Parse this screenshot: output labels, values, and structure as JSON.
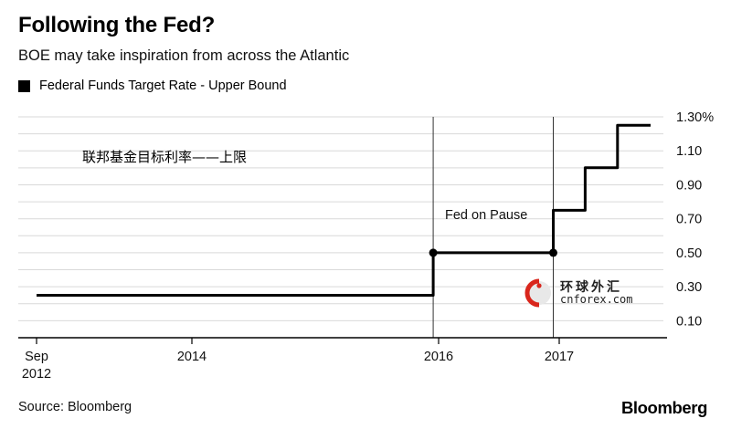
{
  "header": {
    "title": "Following the Fed?",
    "subtitle": "BOE may take inspiration from across the Atlantic",
    "legend_label": "Federal Funds Target Rate - Upper Bound"
  },
  "footer": {
    "source": "Source: Bloomberg",
    "brand": "Bloomberg"
  },
  "watermark": {
    "text_cn": "环球外汇",
    "text_en": "cnforex.com"
  },
  "chart_data": {
    "type": "line",
    "title": "Following the Fed?",
    "subtitle": "BOE may take inspiration from across the Atlantic",
    "legend": [
      "Federal Funds Target Rate - Upper Bound"
    ],
    "series": [
      {
        "name": "Federal Funds Target Rate - Upper Bound",
        "color": "#000000",
        "step": true,
        "points": [
          {
            "x": "2012-09-01",
            "y": 0.25
          },
          {
            "x": "2015-12-16",
            "y": 0.25
          },
          {
            "x": "2015-12-16",
            "y": 0.5
          },
          {
            "x": "2016-12-14",
            "y": 0.5
          },
          {
            "x": "2016-12-14",
            "y": 0.75
          },
          {
            "x": "2017-03-15",
            "y": 0.75
          },
          {
            "x": "2017-03-15",
            "y": 1.0
          },
          {
            "x": "2017-06-14",
            "y": 1.0
          },
          {
            "x": "2017-06-14",
            "y": 1.25
          },
          {
            "x": "2017-09-15",
            "y": 1.25
          }
        ],
        "markers": [
          {
            "x": "2015-12-16",
            "y": 0.5
          },
          {
            "x": "2016-12-14",
            "y": 0.5
          }
        ]
      }
    ],
    "x_ticks": [
      {
        "x": "2012-09-01",
        "label": "Sep",
        "sublabel": "2012"
      },
      {
        "x": "2014-01-01",
        "label": "2014"
      },
      {
        "x": "2016-01-01",
        "label": "2016"
      },
      {
        "x": "2017-01-01",
        "label": "2017"
      }
    ],
    "xlim": [
      "2012-09-01",
      "2017-09-15"
    ],
    "y_ticks": [
      "0.10",
      "0.30",
      "0.50",
      "0.70",
      "0.90",
      "1.10",
      "1.30%"
    ],
    "ylim": [
      0.0,
      1.3
    ],
    "y_axis_side": "right",
    "grid": true,
    "vlines": [
      "2015-12-16",
      "2016-12-14"
    ],
    "annotations": [
      {
        "text": "Fed on Pause"
      },
      {
        "text": "联邦基金目标利率——上限"
      }
    ]
  }
}
